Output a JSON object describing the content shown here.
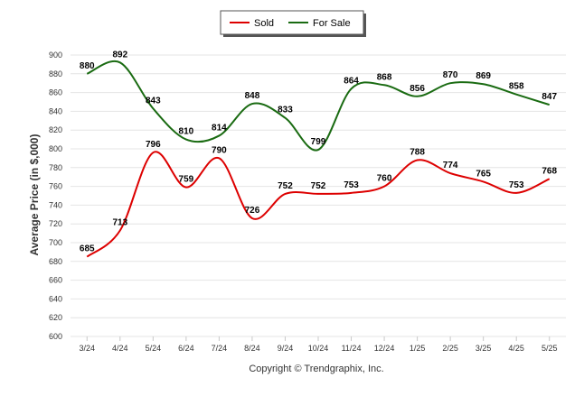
{
  "chart_data": {
    "type": "line",
    "categories": [
      "3/24",
      "4/24",
      "5/24",
      "6/24",
      "7/24",
      "8/24",
      "9/24",
      "10/24",
      "11/24",
      "12/24",
      "1/25",
      "2/25",
      "3/25",
      "4/25",
      "5/25"
    ],
    "series": [
      {
        "name": "Sold",
        "color": "#dd0000",
        "values": [
          685,
          713,
          796,
          759,
          790,
          726,
          752,
          752,
          753,
          760,
          788,
          774,
          765,
          753,
          768
        ]
      },
      {
        "name": "For Sale",
        "color": "#1a6b12",
        "values": [
          880,
          892,
          843,
          810,
          814,
          848,
          833,
          799,
          864,
          868,
          856,
          870,
          869,
          858,
          847
        ]
      }
    ],
    "title": "",
    "xlabel": "",
    "ylabel": "Average Price (in $,000)",
    "ylim": [
      600,
      900
    ],
    "yticks": [
      600,
      620,
      640,
      660,
      680,
      700,
      720,
      740,
      760,
      780,
      800,
      820,
      840,
      860,
      880,
      900
    ],
    "grid": true,
    "legend_position": "top-center"
  },
  "footer": {
    "copyright": "Copyright © Trendgraphix, Inc."
  }
}
